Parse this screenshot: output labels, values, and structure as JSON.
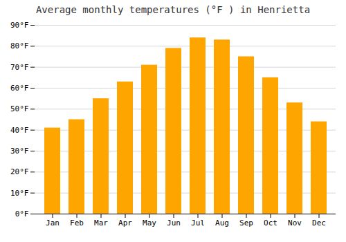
{
  "chart_data": {
    "type": "bar",
    "title": "Average monthly temperatures (°F ) in Henrietta",
    "categories": [
      "Jan",
      "Feb",
      "Mar",
      "Apr",
      "May",
      "Jun",
      "Jul",
      "Aug",
      "Sep",
      "Oct",
      "Nov",
      "Dec"
    ],
    "values": [
      41,
      45,
      55,
      63,
      71,
      79,
      84,
      83,
      75,
      65,
      53,
      44
    ],
    "color": "#FFA500",
    "ylim": [
      0,
      90
    ],
    "yticks": [
      {
        "value": 0,
        "label": "0°F"
      },
      {
        "value": 10,
        "label": "10°F"
      },
      {
        "value": 20,
        "label": "20°F"
      },
      {
        "value": 30,
        "label": "30°F"
      },
      {
        "value": 40,
        "label": "40°F"
      },
      {
        "value": 50,
        "label": "50°F"
      },
      {
        "value": 60,
        "label": "60°F"
      },
      {
        "value": 70,
        "label": "70°F"
      },
      {
        "value": 80,
        "label": "80°F"
      },
      {
        "value": 90,
        "label": "90°F"
      }
    ],
    "grid": true
  }
}
